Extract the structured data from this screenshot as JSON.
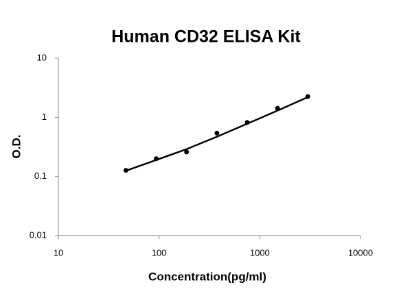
{
  "chart_data": {
    "type": "scatter",
    "title": "Human CD32 ELISA Kit",
    "xlabel": "Concentration(pg/ml)",
    "ylabel": "O.D.",
    "xscale": "log",
    "yscale": "log",
    "xlim": [
      10,
      10000
    ],
    "xticks": [
      10,
      100,
      1000,
      10000
    ],
    "ylim": [
      0.01,
      10
    ],
    "yticks": [
      0.01,
      0.1,
      1,
      10
    ],
    "series": [
      {
        "mode": "markers",
        "color": "#000000",
        "x": [
          46.875,
          93.75,
          187.5,
          375,
          750,
          1500,
          3000
        ],
        "values": [
          0.127,
          0.2,
          0.26,
          0.54,
          0.82,
          1.42,
          2.25
        ]
      },
      {
        "mode": "line",
        "color": "#000000",
        "x": [
          46.875,
          93.75,
          187.5,
          375,
          750,
          1500,
          3000
        ],
        "values": [
          0.125,
          0.19,
          0.29,
          0.47,
          0.78,
          1.3,
          2.2
        ]
      }
    ]
  }
}
